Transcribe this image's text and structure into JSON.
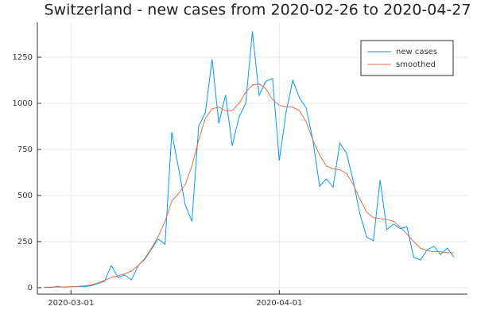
{
  "chart_data": {
    "type": "line",
    "title": "Switzerland - new cases from 2020-02-26 to 2020-04-27",
    "x": [
      "2020-02-26",
      "2020-02-27",
      "2020-02-28",
      "2020-02-29",
      "2020-03-01",
      "2020-03-02",
      "2020-03-03",
      "2020-03-04",
      "2020-03-05",
      "2020-03-06",
      "2020-03-07",
      "2020-03-08",
      "2020-03-09",
      "2020-03-10",
      "2020-03-11",
      "2020-03-12",
      "2020-03-13",
      "2020-03-14",
      "2020-03-15",
      "2020-03-16",
      "2020-03-17",
      "2020-03-18",
      "2020-03-19",
      "2020-03-20",
      "2020-03-21",
      "2020-03-22",
      "2020-03-23",
      "2020-03-24",
      "2020-03-25",
      "2020-03-26",
      "2020-03-27",
      "2020-03-28",
      "2020-03-29",
      "2020-03-30",
      "2020-03-31",
      "2020-04-01",
      "2020-04-02",
      "2020-04-03",
      "2020-04-04",
      "2020-04-05",
      "2020-04-06",
      "2020-04-07",
      "2020-04-08",
      "2020-04-09",
      "2020-04-10",
      "2020-04-11",
      "2020-04-12",
      "2020-04-13",
      "2020-04-14",
      "2020-04-15",
      "2020-04-16",
      "2020-04-17",
      "2020-04-18",
      "2020-04-19",
      "2020-04-20",
      "2020-04-21",
      "2020-04-22",
      "2020-04-23",
      "2020-04-24",
      "2020-04-25",
      "2020-04-26",
      "2020-04-27"
    ],
    "series": [
      {
        "name": "new cases",
        "color": "#009af9",
        "values": [
          1,
          1,
          7,
          3,
          5,
          6,
          5,
          11,
          22,
          35,
          120,
          55,
          70,
          42,
          120,
          155,
          210,
          265,
          235,
          845,
          650,
          450,
          360,
          875,
          950,
          1240,
          890,
          1045,
          770,
          925,
          1000,
          1390,
          1045,
          1120,
          1135,
          690,
          950,
          1125,
          1030,
          975,
          800,
          550,
          590,
          545,
          785,
          730,
          580,
          400,
          275,
          255,
          585,
          315,
          345,
          320,
          330,
          165,
          150,
          205,
          225,
          180,
          215,
          165
        ]
      },
      {
        "name": "smoothed",
        "color": "#e26f46",
        "values": [
          2,
          3,
          4,
          4,
          5,
          7,
          10,
          15,
          25,
          40,
          55,
          65,
          75,
          90,
          120,
          160,
          215,
          280,
          360,
          470,
          510,
          560,
          660,
          800,
          920,
          970,
          980,
          960,
          960,
          1000,
          1060,
          1100,
          1105,
          1080,
          1020,
          990,
          980,
          980,
          960,
          900,
          800,
          720,
          660,
          645,
          640,
          620,
          560,
          480,
          410,
          380,
          375,
          370,
          360,
          330,
          290,
          250,
          215,
          200,
          195,
          195,
          190,
          190
        ]
      }
    ],
    "xlim": [
      "2020-02-25",
      "2020-04-29"
    ],
    "xticks": [
      "2020-03-01",
      "2020-04-01"
    ],
    "ylim": [
      -35,
      1440
    ],
    "yticks": [
      0,
      250,
      500,
      750,
      1000,
      1250
    ],
    "grid": true,
    "legend": "top-right"
  }
}
